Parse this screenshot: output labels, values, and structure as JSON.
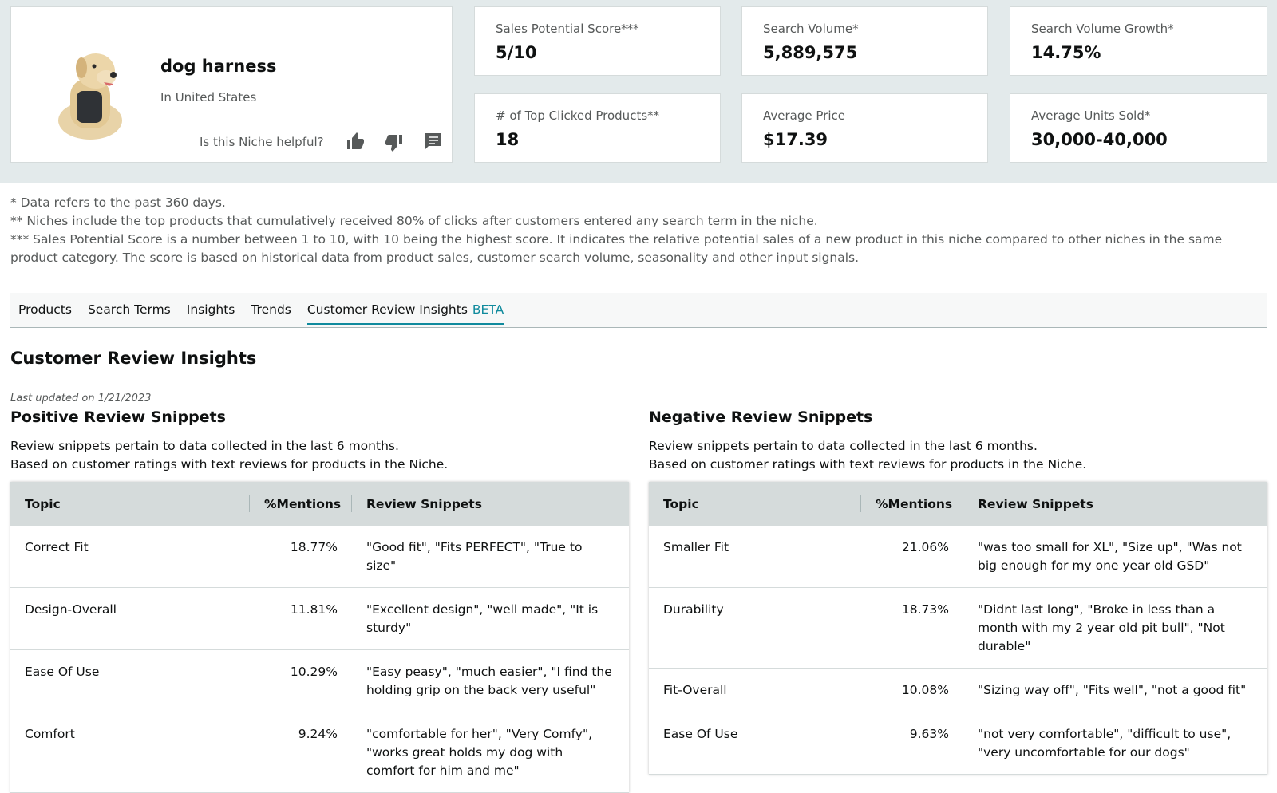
{
  "header": {
    "title": "dog harness",
    "location": "In United States",
    "helpful_prompt": "Is this Niche helpful?"
  },
  "metrics": [
    {
      "label": "Sales Potential Score***",
      "value": "5/10"
    },
    {
      "label": "Search Volume*",
      "value": "5,889,575"
    },
    {
      "label": "Search Volume Growth*",
      "value": "14.75%"
    },
    {
      "label": "# of Top Clicked Products**",
      "value": "18"
    },
    {
      "label": "Average Price",
      "value": "$17.39"
    },
    {
      "label": "Average Units Sold*",
      "value": "30,000-40,000"
    }
  ],
  "footnotes": [
    "* Data refers to the past 360 days.",
    "** Niches include the top products that cumulatively received 80% of clicks after customers entered any search term in the niche.",
    "*** Sales Potential Score is a number between 1 to 10, with 10 being the highest score. It indicates the relative potential sales of a new product in this niche compared to other niches in the same product category. The score is based on historical data from product sales, customer search volume, seasonality and other input signals."
  ],
  "tabs": [
    "Products",
    "Search Terms",
    "Insights",
    "Trends",
    "Customer Review Insights"
  ],
  "active_tab_badge": "BETA",
  "section": {
    "title": "Customer Review Insights",
    "last_updated": "Last updated on 1/21/2023"
  },
  "panels": [
    {
      "title": "Positive Review Snippets",
      "description": [
        "Review snippets pertain to data collected in the last 6 months.",
        "Based on customer ratings with text reviews for products in the Niche."
      ],
      "columns": [
        "Topic",
        "%Mentions",
        "Review Snippets"
      ],
      "rows": [
        [
          "Correct Fit",
          "18.77%",
          "\"Good fit\", \"Fits PERFECT\", \"True to size\""
        ],
        [
          "Design-Overall",
          "11.81%",
          "\"Excellent design\", \"well made\", \"It is sturdy\""
        ],
        [
          "Ease Of Use",
          "10.29%",
          "\"Easy peasy\", \"much easier\", \"I find the holding grip on the back very useful\""
        ],
        [
          "Comfort",
          "9.24%",
          "\"comfortable for her\", \"Very Comfy\", \"works great holds my dog with comfort for him and me\""
        ]
      ]
    },
    {
      "title": "Negative Review Snippets",
      "description": [
        "Review snippets pertain to data collected in the last 6 months.",
        "Based on customer ratings with text reviews for products in the Niche."
      ],
      "columns": [
        "Topic",
        "%Mentions",
        "Review Snippets"
      ],
      "rows": [
        [
          "Smaller Fit",
          "21.06%",
          "\"was too small for XL\", \"Size up\", \"Was not big enough for my one year old GSD\""
        ],
        [
          "Durability",
          "18.73%",
          "\"Didnt last long\", \"Broke in less than a month with my 2 year old pit bull\", \"Not durable\""
        ],
        [
          "Fit-Overall",
          "10.08%",
          "\"Sizing way off\", \"Fits well\", \"not a good fit\""
        ],
        [
          "Ease Of Use",
          "9.63%",
          "\"not very comfortable\", \"difficult to use\", \"very uncomfortable for our dogs\""
        ]
      ]
    }
  ]
}
